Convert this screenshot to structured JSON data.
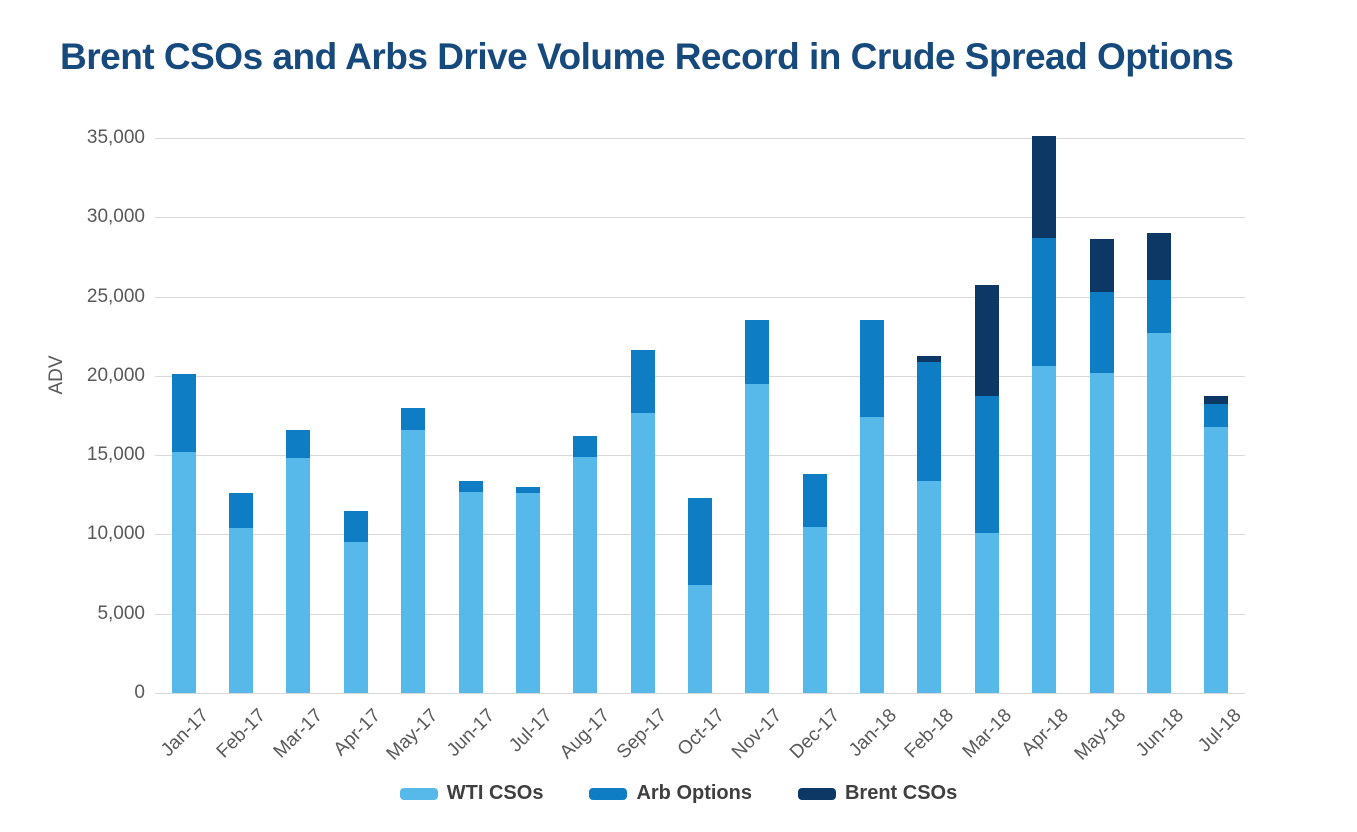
{
  "chart_data": {
    "type": "bar",
    "stacked": true,
    "title": "Brent CSOs and Arbs Drive Volume Record in Crude Spread Options",
    "ylabel": "ADV",
    "xlabel": "",
    "ylim": [
      0,
      35000
    ],
    "y_tick_step": 5000,
    "y_tick_labels": [
      "0",
      "5,000",
      "10,000",
      "15,000",
      "20,000",
      "25,000",
      "30,000",
      "35,000"
    ],
    "grid": true,
    "legend_position": "bottom-center",
    "categories": [
      "Jan-17",
      "Feb-17",
      "Mar-17",
      "Apr-17",
      "May-17",
      "Jun-17",
      "Jul-17",
      "Aug-17",
      "Sep-17",
      "Oct-17",
      "Nov-17",
      "Dec-17",
      "Jan-18",
      "Feb-18",
      "Mar-18",
      "Apr-18",
      "May-18",
      "Jun-18",
      "Jul-18"
    ],
    "series": [
      {
        "name": "WTI CSOs",
        "color": "#56B9EA",
        "values": [
          15200,
          10400,
          14800,
          9500,
          16600,
          12700,
          12600,
          14900,
          17650,
          6800,
          19500,
          10450,
          17400,
          13400,
          10100,
          20600,
          20200,
          22700,
          16750
        ]
      },
      {
        "name": "Arb Options",
        "color": "#0F7DC4",
        "values": [
          4900,
          2200,
          1800,
          2000,
          1400,
          700,
          400,
          1300,
          3950,
          5500,
          4000,
          3350,
          6100,
          7450,
          8600,
          8100,
          5100,
          3350,
          1450
        ]
      },
      {
        "name": "Brent CSOs",
        "color": "#0D3866",
        "values": [
          0,
          0,
          0,
          0,
          0,
          0,
          0,
          0,
          0,
          0,
          0,
          0,
          0,
          400,
          7000,
          6450,
          3300,
          2950,
          550
        ]
      }
    ]
  },
  "colors": {
    "title": "#174A7C",
    "axis_text": "#595959",
    "gridline": "#D9D9D9",
    "background": "#FFFFFF"
  }
}
